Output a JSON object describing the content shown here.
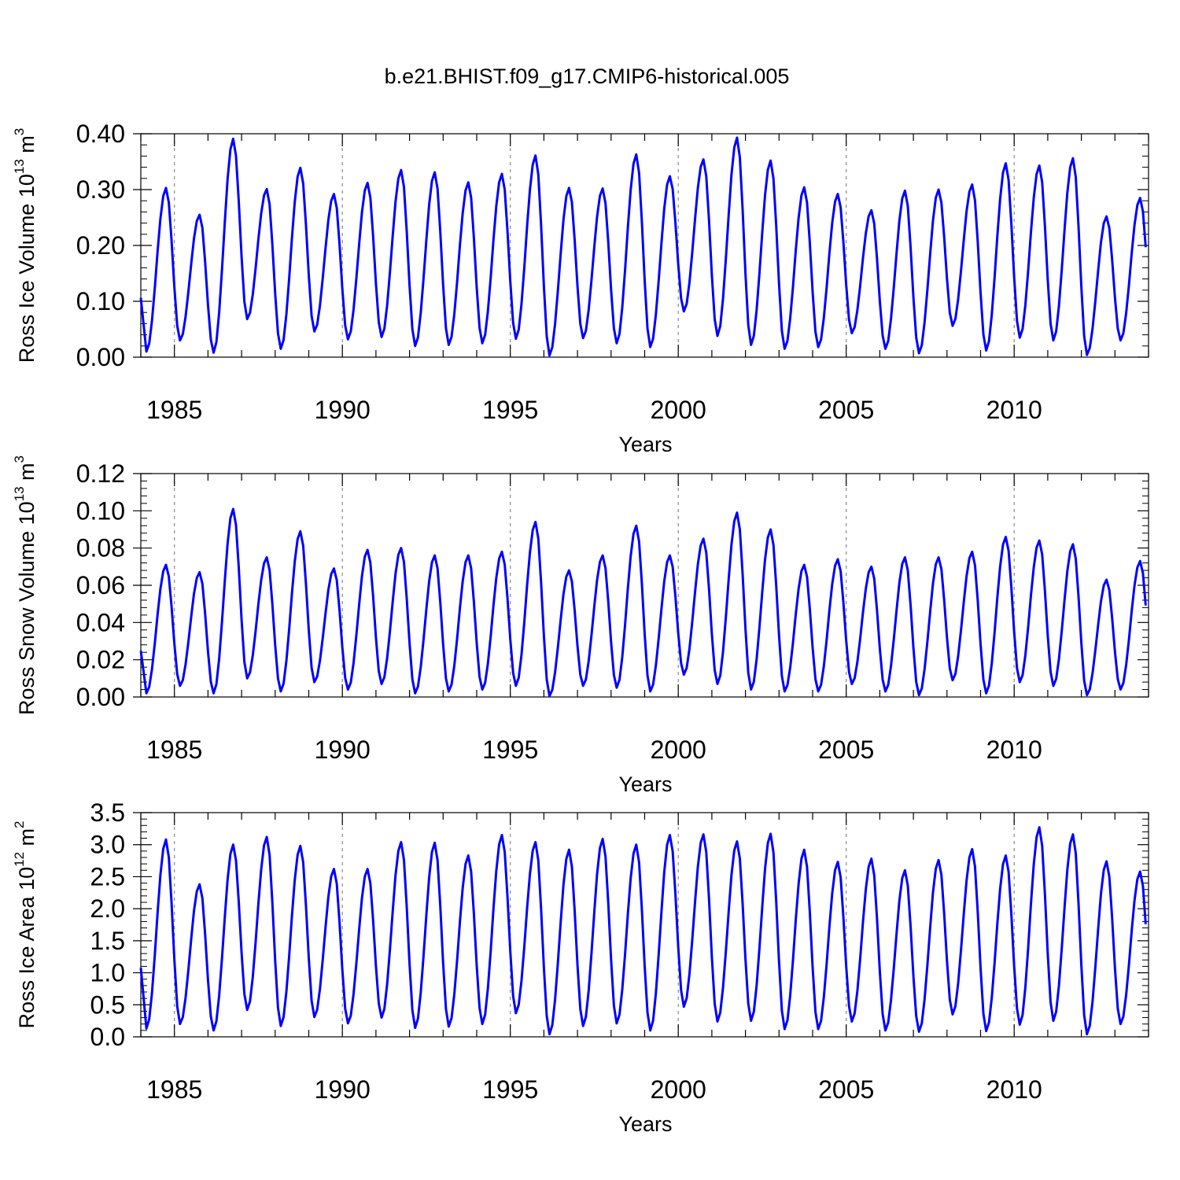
{
  "figure_title": "b.e21.BHIST.f09_g17.CMIP6-historical.005",
  "chart_data": [
    {
      "type": "line",
      "title": "",
      "ylabel": {
        "prefix": "Ross Ice Volume 10",
        "exponent": "13",
        "unit": " m",
        "unit_exponent": "3"
      },
      "xlabel": "Years",
      "xlim": [
        1984.0,
        2014.0
      ],
      "ylim": [
        0.0,
        0.4
      ],
      "yticks": [
        "0.00",
        "0.10",
        "0.20",
        "0.30",
        "0.40"
      ],
      "xticks": [
        "1985",
        "1990",
        "1995",
        "2000",
        "2005",
        "2010"
      ],
      "grid": "vertical dashed lines at labeled years",
      "line_color": "#0000ff",
      "seasonal_min_month": 2,
      "seasonal_max_month": 9,
      "annual_min": [
        0.01,
        0.03,
        0.008,
        0.068,
        0.015,
        0.046,
        0.032,
        0.036,
        0.02,
        0.022,
        0.025,
        0.033,
        0.003,
        0.034,
        0.025,
        0.018,
        0.082,
        0.038,
        0.022,
        0.015,
        0.018,
        0.043,
        0.015,
        0.007,
        0.056,
        0.012,
        0.035,
        0.03,
        0.004,
        0.03
      ],
      "annual_max": [
        0.303,
        0.255,
        0.391,
        0.301,
        0.339,
        0.292,
        0.312,
        0.335,
        0.331,
        0.313,
        0.328,
        0.361,
        0.303,
        0.302,
        0.363,
        0.324,
        0.354,
        0.393,
        0.352,
        0.304,
        0.292,
        0.263,
        0.298,
        0.3,
        0.309,
        0.347,
        0.343,
        0.356,
        0.252,
        0.285
      ]
    },
    {
      "type": "line",
      "title": "",
      "ylabel": {
        "prefix": "Ross Snow Volume 10",
        "exponent": "13",
        "unit": " m",
        "unit_exponent": "3"
      },
      "xlabel": "Years",
      "xlim": [
        1984.0,
        2014.0
      ],
      "ylim": [
        0.0,
        0.12
      ],
      "yticks": [
        "0.00",
        "0.02",
        "0.04",
        "0.06",
        "0.08",
        "0.10",
        "0.12"
      ],
      "xticks": [
        "1985",
        "1990",
        "1995",
        "2000",
        "2005",
        "2010"
      ],
      "grid": "vertical dashed lines at labeled years",
      "line_color": "#0000ff",
      "seasonal_min_month": 2,
      "seasonal_max_month": 9,
      "annual_min": [
        0.002,
        0.006,
        0.002,
        0.01,
        0.003,
        0.008,
        0.004,
        0.007,
        0.002,
        0.003,
        0.004,
        0.006,
        0.0005,
        0.006,
        0.005,
        0.003,
        0.012,
        0.007,
        0.004,
        0.003,
        0.003,
        0.007,
        0.003,
        0.001,
        0.009,
        0.002,
        0.008,
        0.006,
        0.001,
        0.004
      ],
      "annual_max": [
        0.071,
        0.067,
        0.101,
        0.075,
        0.089,
        0.069,
        0.079,
        0.08,
        0.076,
        0.076,
        0.078,
        0.094,
        0.068,
        0.076,
        0.092,
        0.076,
        0.085,
        0.099,
        0.09,
        0.071,
        0.074,
        0.07,
        0.075,
        0.075,
        0.078,
        0.086,
        0.084,
        0.082,
        0.063,
        0.073
      ]
    },
    {
      "type": "line",
      "title": "",
      "ylabel": {
        "prefix": "Ross Ice Area 10",
        "exponent": "12",
        "unit": " m",
        "unit_exponent": "2"
      },
      "xlabel": "Years",
      "xlim": [
        1984.0,
        2014.0
      ],
      "ylim": [
        0.0,
        3.5
      ],
      "yticks": [
        "0.0",
        "0.5",
        "1.0",
        "1.5",
        "2.0",
        "2.5",
        "3.0",
        "3.5"
      ],
      "xticks": [
        "1985",
        "1990",
        "1995",
        "2000",
        "2005",
        "2010"
      ],
      "grid": "vertical dashed lines at labeled years",
      "line_color": "#0000ff",
      "seasonal_min_month": 2,
      "seasonal_max_month": 9,
      "annual_min": [
        0.13,
        0.2,
        0.1,
        0.42,
        0.17,
        0.31,
        0.21,
        0.3,
        0.14,
        0.16,
        0.2,
        0.37,
        0.04,
        0.17,
        0.21,
        0.1,
        0.47,
        0.24,
        0.25,
        0.12,
        0.12,
        0.24,
        0.1,
        0.08,
        0.35,
        0.09,
        0.19,
        0.25,
        0.04,
        0.2
      ],
      "annual_max": [
        3.08,
        2.38,
        3.0,
        3.12,
        2.98,
        2.62,
        2.62,
        3.04,
        3.03,
        2.83,
        3.15,
        3.04,
        2.92,
        3.09,
        3.0,
        3.15,
        3.16,
        3.05,
        3.17,
        2.92,
        2.73,
        2.78,
        2.6,
        2.76,
        2.93,
        2.83,
        3.27,
        3.16,
        2.74,
        2.58
      ]
    }
  ]
}
